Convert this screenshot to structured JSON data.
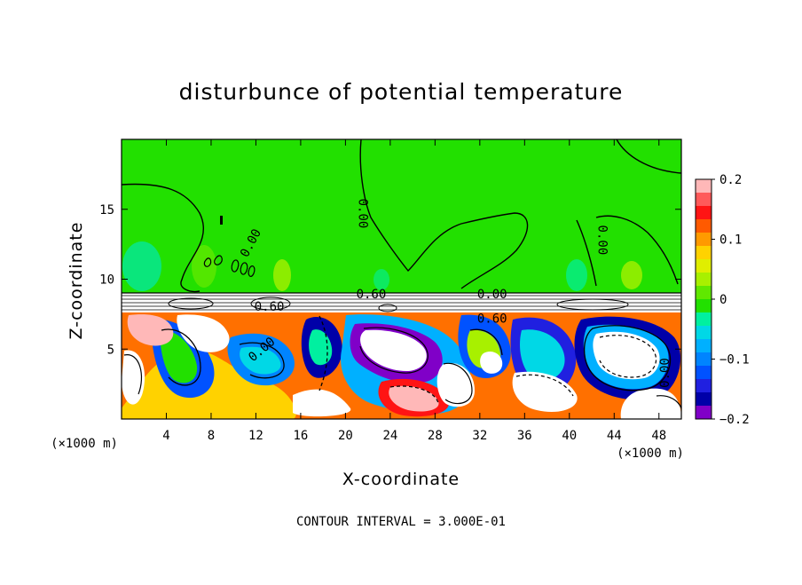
{
  "chart_data": {
    "type": "heatmap",
    "title": "disturbunce of potential temperature",
    "xlabel": "X-coordinate",
    "ylabel": "Z-coordinate",
    "x_unit": "(×1000 m)",
    "z_unit": "(×1000 m)",
    "xlim": [
      0,
      50
    ],
    "ylim": [
      0,
      20
    ],
    "x_ticks": [
      4,
      8,
      12,
      16,
      20,
      24,
      28,
      32,
      36,
      40,
      44,
      48
    ],
    "y_ticks": [
      5,
      10,
      15
    ],
    "colorbar": {
      "vmin": -0.2,
      "vmax": 0.2,
      "tick_labels": [
        "0.2",
        "0.1",
        "0",
        "−0.1",
        "−0.2"
      ],
      "tick_values": [
        0.2,
        0.1,
        0,
        -0.1,
        -0.2
      ],
      "colors": [
        "#ffb8b8",
        "#ff5a5a",
        "#ff1414",
        "#ff5a00",
        "#ff9a00",
        "#ffd200",
        "#e0ee00",
        "#a8f000",
        "#60e800",
        "#22e000",
        "#00f0a0",
        "#00d8e6",
        "#00b0ff",
        "#0084ff",
        "#0052ff",
        "#2020e0",
        "#0000a8",
        "#8000c8"
      ]
    },
    "contour_labels": [
      {
        "text": "0.00",
        "x": 11.5,
        "z": 12.6,
        "angle": -62
      },
      {
        "text": "0.00",
        "x": 21.6,
        "z": 14.7,
        "angle": 90
      },
      {
        "text": "0.00",
        "x": 43.0,
        "z": 12.8,
        "angle": 90
      },
      {
        "text": "0.60",
        "x": 22.3,
        "z": 8.95,
        "angle": 0
      },
      {
        "text": "0.00",
        "x": 33.1,
        "z": 8.95,
        "angle": 0
      },
      {
        "text": "0.60",
        "x": 13.2,
        "z": 8.05,
        "angle": 0
      },
      {
        "text": "0.60",
        "x": 33.1,
        "z": 7.2,
        "angle": 0
      },
      {
        "text": "0.00",
        "x": 12.5,
        "z": 5.0,
        "angle": -40
      },
      {
        "text": "0.00",
        "x": 48.5,
        "z": 3.3,
        "angle": -90
      }
    ],
    "footer": "CONTOUR INTERVAL = 3.000E-01"
  }
}
